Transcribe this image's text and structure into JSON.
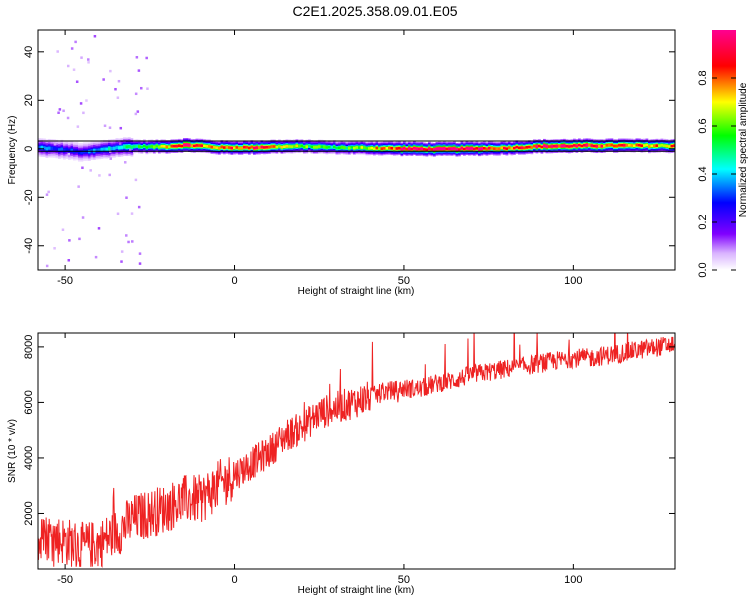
{
  "title": "C2E1.2025.358.09.01.E05",
  "chart_data": [
    {
      "type": "heatmap",
      "name": "spectrogram",
      "xlabel": "Height of straight line (km)",
      "ylabel": "Frequency (Hz)",
      "xlim": [
        -58,
        130
      ],
      "ylim": [
        -50,
        49
      ],
      "xticks": [
        -50,
        0,
        50,
        100
      ],
      "yticks": [
        -40,
        -20,
        0,
        20,
        40
      ],
      "colorbar": {
        "label": "Normalized spectral amplitude",
        "range": [
          0.0,
          1.0
        ],
        "ticks": [
          "0.0",
          "0.2",
          "0.4",
          "0.6",
          "0.8"
        ],
        "colors": [
          "#ffffff",
          "#7f00ff",
          "#0000ff",
          "#00ffff",
          "#00ff00",
          "#ffff00",
          "#ff0000",
          "#ff0090"
        ]
      },
      "reference_lines": [
        {
          "from": [
            -58,
            -1.0
          ],
          "to": [
            130,
            -1.0
          ]
        },
        {
          "from": [
            -58,
            3.2
          ],
          "to": [
            130,
            3.2
          ]
        }
      ],
      "ridge": {
        "x": [
          -58,
          -50,
          -45,
          -40,
          -35,
          -30,
          -25,
          -20,
          -15,
          -10,
          -5,
          0,
          5,
          10,
          20,
          30,
          40,
          50,
          60,
          70,
          80,
          90,
          100,
          110,
          120,
          130
        ],
        "center_freq_hz": [
          0.5,
          -0.5,
          -1.5,
          -0.5,
          0.5,
          1.0,
          0.8,
          1.0,
          1.5,
          1.2,
          0.5,
          0.5,
          0.5,
          0.8,
          1.0,
          0.5,
          0.3,
          0.0,
          -0.2,
          0.0,
          0.3,
          1.0,
          1.2,
          1.3,
          1.3,
          1.2
        ],
        "peak_amplitude": [
          0.35,
          0.3,
          0.3,
          0.4,
          0.45,
          0.5,
          0.55,
          0.7,
          0.95,
          0.8,
          0.75,
          0.85,
          0.85,
          0.8,
          0.6,
          0.5,
          0.7,
          0.9,
          1.0,
          1.0,
          0.8,
          0.95,
          0.9,
          0.85,
          0.8,
          0.75
        ]
      }
    },
    {
      "type": "line",
      "name": "snr",
      "xlabel": "Height of straight line (km)",
      "ylabel": "SNR (10 * v/v)",
      "xlim": [
        -58,
        130
      ],
      "ylim": [
        0,
        8500
      ],
      "xticks": [
        -50,
        0,
        50,
        100
      ],
      "yticks": [
        2000,
        4000,
        6000,
        8000
      ],
      "color": "#ee2222",
      "series": [
        {
          "name": "SNR",
          "x": [
            -58,
            -55,
            -50,
            -45,
            -40,
            -35,
            -30,
            -25,
            -20,
            -15,
            -10,
            -5,
            0,
            5,
            10,
            15,
            20,
            25,
            30,
            35,
            40,
            45,
            50,
            55,
            60,
            65,
            70,
            75,
            80,
            85,
            90,
            95,
            100,
            105,
            110,
            115,
            120,
            125,
            130
          ],
          "values": [
            900,
            1200,
            1000,
            800,
            900,
            1300,
            1800,
            2000,
            2200,
            2500,
            2500,
            3000,
            3400,
            3800,
            4200,
            4800,
            5100,
            5600,
            5800,
            6000,
            6200,
            6400,
            6500,
            6500,
            6700,
            6800,
            7000,
            7100,
            7200,
            7300,
            7400,
            7500,
            7600,
            7600,
            7700,
            7800,
            7900,
            8000,
            8100
          ]
        }
      ]
    }
  ]
}
